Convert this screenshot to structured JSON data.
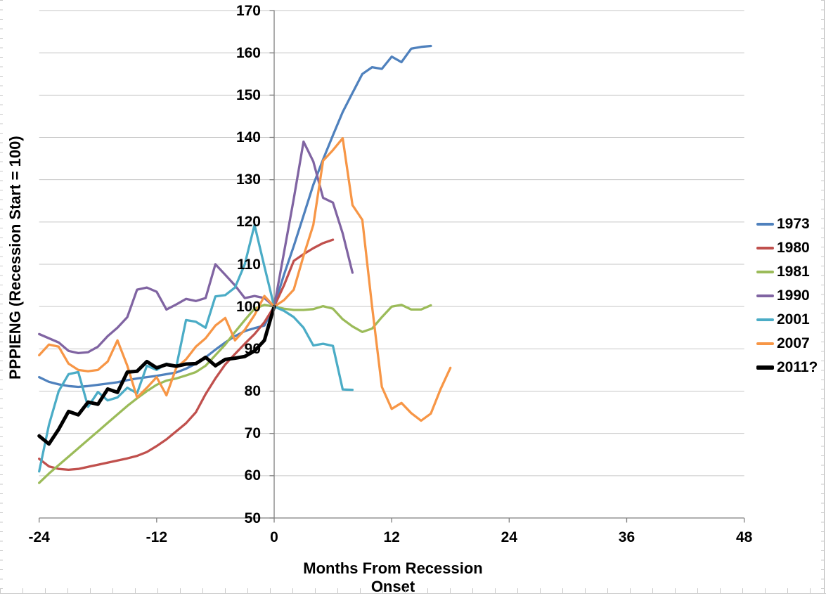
{
  "chart_data": {
    "type": "line",
    "title": "",
    "xlabel": "Months From Recession Onset",
    "ylabel": "PPPIENG (Recession Start = 100)",
    "xlim": [
      -24,
      48
    ],
    "ylim": [
      50,
      170
    ],
    "x_ticks": [
      -24,
      -12,
      0,
      12,
      24,
      36,
      48
    ],
    "y_ticks": [
      170,
      160,
      150,
      140,
      130,
      120,
      110,
      100,
      90,
      80,
      70,
      60,
      50
    ],
    "grid": "horizontal-only",
    "legend_position": "right",
    "axis_color": "#7f7f7f",
    "gridline_color": "#c6c6c6",
    "x_step_months": 1,
    "series": [
      {
        "name": "1973",
        "color": "#4F81BD",
        "width": 3.3,
        "x0": -24,
        "values": [
          83.3,
          82.2,
          81.6,
          81.2,
          81.0,
          81.2,
          81.5,
          81.8,
          82.1,
          82.6,
          83.0,
          83.3,
          83.6,
          84.0,
          84.4,
          85.3,
          86.5,
          88.0,
          89.8,
          91.5,
          93.0,
          94.2,
          94.9,
          95.5,
          100,
          107.5,
          114.3,
          121.5,
          128.8,
          134.8,
          140.5,
          146.0,
          150.5,
          155.0,
          156.6,
          156.2,
          159.1,
          157.8,
          161.0,
          161.4,
          161.6
        ]
      },
      {
        "name": "1980",
        "color": "#C0504D",
        "width": 3.3,
        "x0": -24,
        "values": [
          64.0,
          62.2,
          61.6,
          61.4,
          61.6,
          62.1,
          62.6,
          63.1,
          63.6,
          64.1,
          64.7,
          65.6,
          67.0,
          68.6,
          70.5,
          72.4,
          75.0,
          79.3,
          83.0,
          86.3,
          88.8,
          91.2,
          93.5,
          96.3,
          100,
          105.0,
          110.8,
          112.4,
          113.8,
          115.0,
          115.8
        ]
      },
      {
        "name": "1981",
        "color": "#9BBB59",
        "width": 3.3,
        "x0": -24,
        "values": [
          58.3,
          60.5,
          62.5,
          64.5,
          66.5,
          68.5,
          70.5,
          72.5,
          74.5,
          76.5,
          78.3,
          80.0,
          81.5,
          82.5,
          83.0,
          83.7,
          84.5,
          86.0,
          88.5,
          91.0,
          94.0,
          96.8,
          99.5,
          100.4,
          100,
          99.5,
          99.2,
          99.2,
          99.4,
          100.1,
          99.5,
          97.0,
          95.3,
          94.0,
          94.8,
          97.5,
          100.0,
          100.4,
          99.3,
          99.3,
          100.3
        ]
      },
      {
        "name": "1990",
        "color": "#8064A2",
        "width": 3.3,
        "x0": -24,
        "values": [
          93.5,
          92.5,
          91.5,
          89.5,
          89.0,
          89.2,
          90.5,
          93.0,
          95.0,
          97.5,
          104.0,
          104.5,
          103.5,
          99.3,
          100.5,
          101.8,
          101.3,
          102.0,
          110.0,
          107.5,
          105.0,
          102.0,
          102.5,
          102.0,
          100,
          112.7,
          125.5,
          139.0,
          134.3,
          125.7,
          124.6,
          117.3,
          108.0
        ]
      },
      {
        "name": "2001",
        "color": "#4BACC6",
        "width": 3.3,
        "x0": -24,
        "values": [
          61.0,
          72.0,
          80.0,
          84.0,
          84.5,
          76.3,
          79.8,
          77.8,
          78.5,
          80.8,
          79.5,
          86.0,
          85.0,
          86.5,
          85.7,
          96.8,
          96.4,
          95.0,
          102.4,
          102.7,
          104.5,
          110.0,
          119.3,
          109.5,
          100,
          99.0,
          97.5,
          95.0,
          90.8,
          91.2,
          90.7,
          80.4,
          80.3
        ]
      },
      {
        "name": "2007",
        "color": "#F79646",
        "width": 3.3,
        "x0": -24,
        "values": [
          88.5,
          91.0,
          90.5,
          86.5,
          85.0,
          84.7,
          85.0,
          87.0,
          92.0,
          86.0,
          78.5,
          80.8,
          83.3,
          79.0,
          85.5,
          87.5,
          90.5,
          92.5,
          95.5,
          97.3,
          92.0,
          94.5,
          98.0,
          102.5,
          100,
          101.5,
          104.0,
          112.0,
          119.3,
          134.5,
          137.0,
          139.8,
          124.0,
          120.5,
          100.0,
          81.0,
          75.8,
          77.2,
          74.8,
          73.0,
          74.7,
          80.5,
          85.5
        ]
      },
      {
        "name": "2011?",
        "color": "#000000",
        "width": 5.0,
        "x0": -24,
        "values": [
          69.4,
          67.5,
          71.0,
          75.2,
          74.4,
          77.4,
          76.9,
          80.5,
          79.7,
          84.5,
          84.7,
          87.0,
          85.5,
          86.3,
          85.9,
          86.4,
          86.5,
          88.0,
          86.0,
          87.5,
          87.8,
          88.2,
          89.5,
          92.0,
          100
        ]
      }
    ]
  },
  "legend": {
    "items": [
      "1973",
      "1980",
      "1981",
      "1990",
      "2001",
      "2007",
      "2011?"
    ]
  }
}
